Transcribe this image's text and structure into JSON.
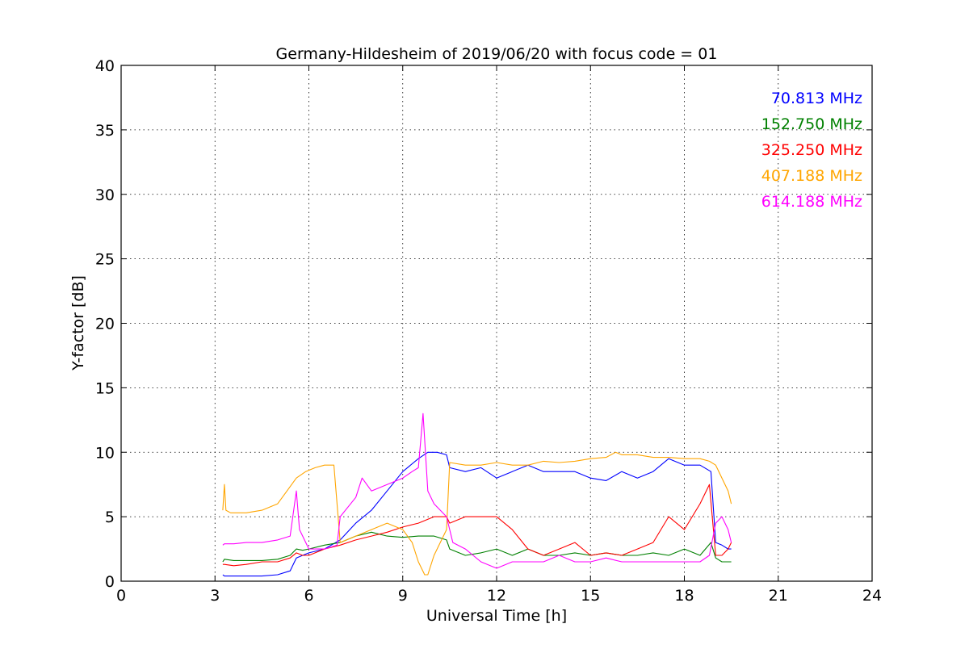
{
  "chart_data": {
    "type": "line",
    "title": "Germany-Hildesheim of 2019/06/20 with focus code = 01",
    "xlabel": "Universal Time [h]",
    "ylabel": "Y-factor [dB]",
    "xlim": [
      0,
      24
    ],
    "ylim": [
      0,
      40
    ],
    "xticks": [
      0,
      3,
      6,
      9,
      12,
      15,
      18,
      21,
      24
    ],
    "yticks": [
      0,
      5,
      10,
      15,
      20,
      25,
      30,
      35,
      40
    ],
    "grid": true,
    "legend_position": "top-right",
    "series": [
      {
        "name": "70.813 MHz",
        "color": "#0000ff",
        "x": [
          3.25,
          3.3,
          3.6,
          4.0,
          4.5,
          5.0,
          5.4,
          5.6,
          5.8,
          6.0,
          6.5,
          7.0,
          7.5,
          8.0,
          8.5,
          9.0,
          9.5,
          9.8,
          10.1,
          10.4,
          10.5,
          11.0,
          11.5,
          12.0,
          12.5,
          13.0,
          13.5,
          14.0,
          14.5,
          15.0,
          15.5,
          16.0,
          16.5,
          17.0,
          17.5,
          18.0,
          18.5,
          18.85,
          19.0,
          19.2,
          19.4,
          19.5
        ],
        "y": [
          0.5,
          0.4,
          0.4,
          0.4,
          0.4,
          0.5,
          0.8,
          1.8,
          2.0,
          2.2,
          2.5,
          3.2,
          4.5,
          5.5,
          7.0,
          8.5,
          9.5,
          10.0,
          10.0,
          9.8,
          8.8,
          8.5,
          8.8,
          8.0,
          8.5,
          9.0,
          8.5,
          8.5,
          8.5,
          8.0,
          7.8,
          8.5,
          8.0,
          8.5,
          9.5,
          9.0,
          9.0,
          8.5,
          3.0,
          2.8,
          2.5,
          2.5
        ]
      },
      {
        "name": "152.750 MHz",
        "color": "#008000",
        "x": [
          3.25,
          3.3,
          3.6,
          4.0,
          4.5,
          5.0,
          5.4,
          5.6,
          5.8,
          6.0,
          6.5,
          7.0,
          7.5,
          8.0,
          8.5,
          9.0,
          9.5,
          10.0,
          10.4,
          10.5,
          11.0,
          11.5,
          12.0,
          12.5,
          13.0,
          13.5,
          14.0,
          14.5,
          15.0,
          15.5,
          16.0,
          16.5,
          17.0,
          17.5,
          18.0,
          18.5,
          18.85,
          19.0,
          19.2,
          19.4,
          19.5
        ],
        "y": [
          1.5,
          1.7,
          1.6,
          1.6,
          1.6,
          1.7,
          2.0,
          2.5,
          2.4,
          2.5,
          2.8,
          3.0,
          3.5,
          3.8,
          3.5,
          3.4,
          3.5,
          3.5,
          3.2,
          2.5,
          2.0,
          2.2,
          2.5,
          2.0,
          2.5,
          2.0,
          2.0,
          2.2,
          2.0,
          2.2,
          2.0,
          2.0,
          2.2,
          2.0,
          2.5,
          2.0,
          3.0,
          1.8,
          1.5,
          1.5,
          1.5
        ]
      },
      {
        "name": "325.250 MHz",
        "color": "#ff0000",
        "x": [
          3.25,
          3.3,
          3.6,
          4.0,
          4.5,
          5.0,
          5.4,
          5.6,
          5.8,
          6.0,
          6.5,
          7.0,
          7.5,
          8.0,
          8.5,
          9.0,
          9.5,
          10.0,
          10.4,
          10.5,
          11.0,
          11.5,
          12.0,
          12.5,
          13.0,
          13.5,
          14.0,
          14.5,
          15.0,
          15.5,
          16.0,
          16.5,
          17.0,
          17.5,
          18.0,
          18.5,
          18.8,
          19.0,
          19.2,
          19.4,
          19.5
        ],
        "y": [
          1.3,
          1.3,
          1.2,
          1.3,
          1.5,
          1.5,
          1.8,
          2.2,
          2.0,
          2.0,
          2.5,
          2.8,
          3.2,
          3.5,
          3.8,
          4.2,
          4.5,
          5.0,
          5.0,
          4.5,
          5.0,
          5.0,
          5.0,
          4.0,
          2.5,
          2.0,
          2.5,
          3.0,
          2.0,
          2.2,
          2.0,
          2.5,
          3.0,
          5.0,
          4.0,
          6.0,
          7.5,
          2.0,
          2.0,
          2.5,
          3.0
        ]
      },
      {
        "name": "407.188 MHz",
        "color": "#ffa500",
        "x": [
          3.25,
          3.3,
          3.35,
          3.5,
          4.0,
          4.5,
          5.0,
          5.3,
          5.6,
          5.9,
          6.2,
          6.5,
          6.8,
          7.0,
          7.5,
          8.0,
          8.5,
          9.0,
          9.3,
          9.5,
          9.7,
          9.8,
          10.0,
          10.4,
          10.5,
          11.0,
          11.5,
          12.0,
          12.5,
          13.0,
          13.5,
          14.0,
          14.5,
          15.0,
          15.5,
          15.8,
          16.0,
          16.5,
          17.0,
          17.5,
          18.0,
          18.5,
          18.8,
          19.0,
          19.2,
          19.4,
          19.5
        ],
        "y": [
          5.5,
          7.5,
          5.5,
          5.3,
          5.3,
          5.5,
          6.0,
          7.0,
          8.0,
          8.5,
          8.8,
          9.0,
          9.0,
          3.0,
          3.5,
          4.0,
          4.5,
          4.0,
          3.0,
          1.5,
          0.5,
          0.5,
          2.0,
          4.0,
          9.2,
          9.0,
          9.0,
          9.2,
          9.0,
          9.0,
          9.3,
          9.2,
          9.3,
          9.5,
          9.6,
          10.0,
          9.8,
          9.8,
          9.6,
          9.6,
          9.5,
          9.5,
          9.3,
          9.0,
          8.0,
          7.0,
          6.0
        ]
      },
      {
        "name": "614.188 MHz",
        "color": "#ff00ff",
        "x": [
          3.25,
          3.3,
          3.6,
          4.0,
          4.5,
          5.0,
          5.4,
          5.6,
          5.7,
          5.8,
          6.0,
          6.5,
          6.9,
          7.0,
          7.5,
          7.7,
          8.0,
          8.5,
          9.0,
          9.3,
          9.5,
          9.65,
          9.8,
          10.0,
          10.4,
          10.6,
          11.0,
          11.5,
          12.0,
          12.5,
          13.0,
          13.5,
          14.0,
          14.5,
          15.0,
          15.5,
          16.0,
          16.5,
          17.0,
          17.5,
          18.0,
          18.5,
          18.8,
          19.0,
          19.2,
          19.4,
          19.5
        ],
        "y": [
          2.8,
          2.9,
          2.9,
          3.0,
          3.0,
          3.2,
          3.5,
          7.0,
          4.0,
          3.5,
          2.5,
          2.5,
          2.8,
          5.0,
          6.5,
          8.0,
          7.0,
          7.5,
          8.0,
          8.5,
          8.8,
          13.0,
          7.0,
          6.0,
          5.0,
          3.0,
          2.5,
          1.5,
          1.0,
          1.5,
          1.5,
          1.5,
          2.0,
          1.5,
          1.5,
          1.8,
          1.5,
          1.5,
          1.5,
          1.5,
          1.5,
          1.5,
          2.0,
          4.5,
          5.0,
          4.0,
          3.0
        ]
      }
    ]
  }
}
